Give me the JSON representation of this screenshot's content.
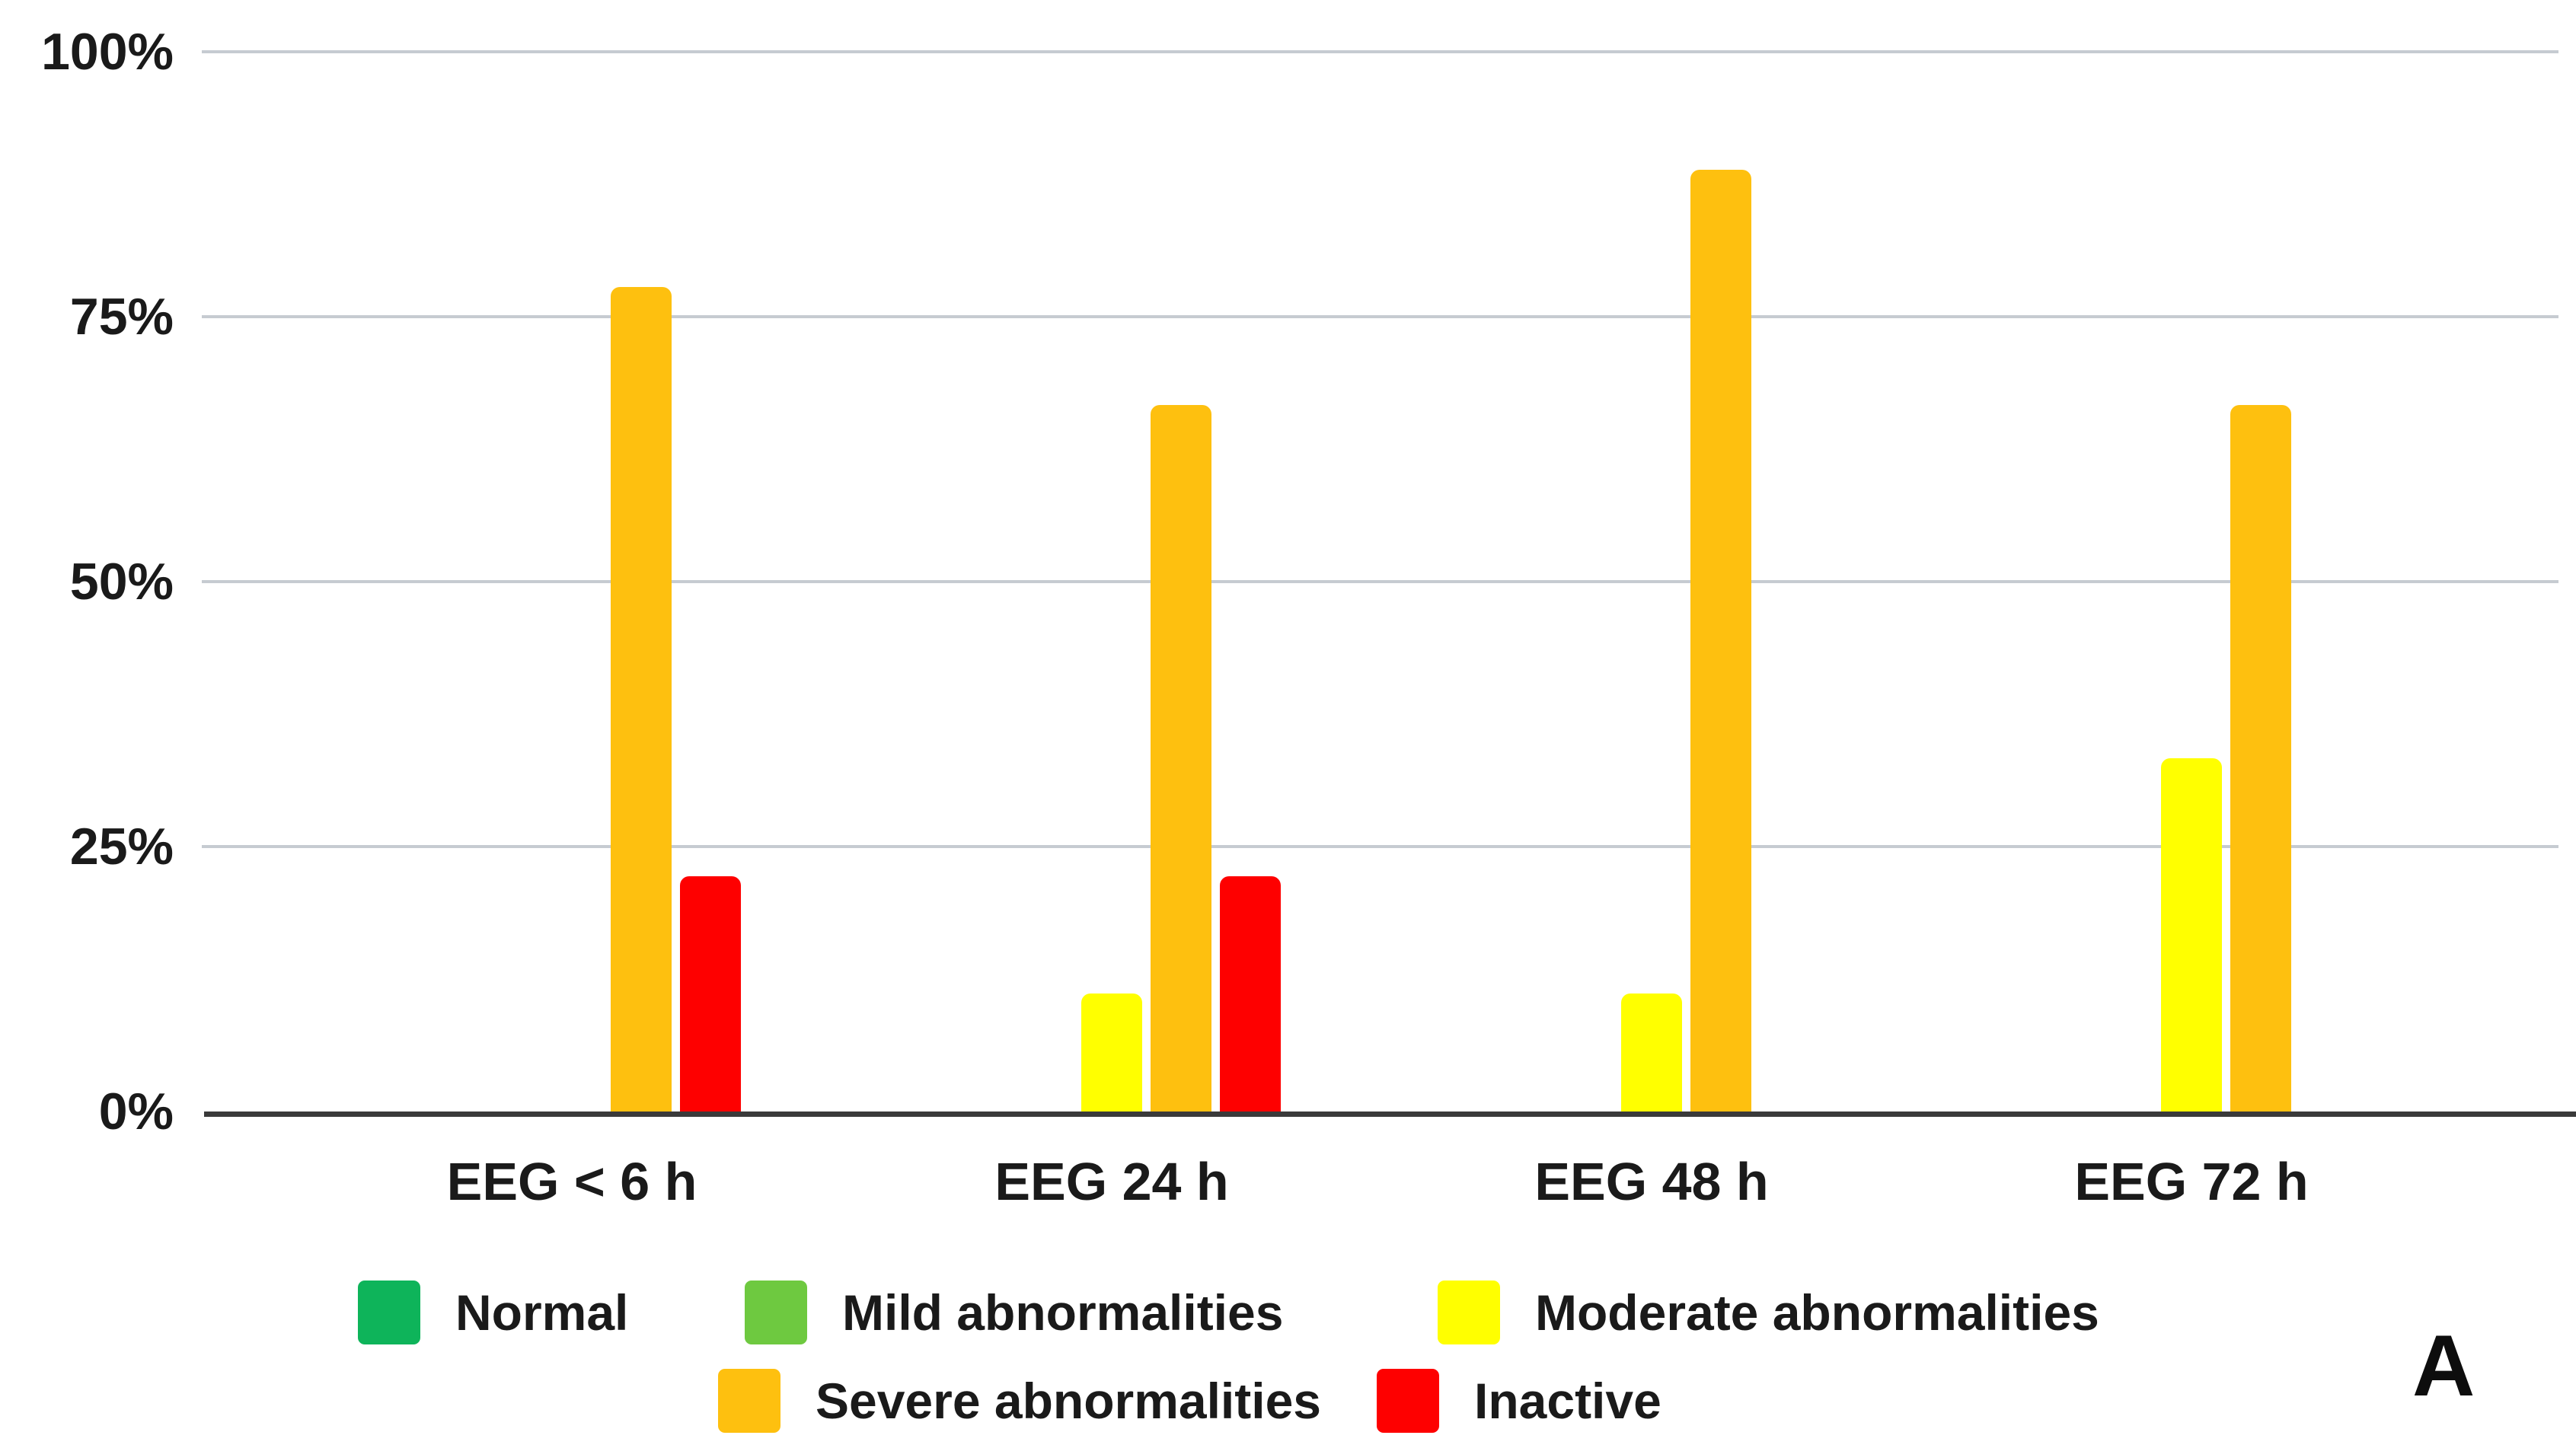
{
  "chart_data": {
    "type": "bar",
    "title": "",
    "xlabel": "",
    "ylabel": "",
    "categories": [
      "EEG < 6 h",
      "EEG 24 h",
      "EEG 48 h",
      "EEG 72 h"
    ],
    "series": [
      {
        "name": "Normal",
        "color": "#0eb45a",
        "values_pct": [
          0,
          0,
          0,
          0
        ]
      },
      {
        "name": "Mild abnormalities",
        "color": "#6ec940",
        "values_pct": [
          0,
          0,
          0,
          0
        ]
      },
      {
        "name": "Moderate abnormalities",
        "color": "#ffff00",
        "values_pct": [
          0,
          11.1,
          11.1,
          33.3
        ]
      },
      {
        "name": "Severe abnormalities",
        "color": "#fec00f",
        "values_pct": [
          77.8,
          66.7,
          88.9,
          66.7
        ]
      },
      {
        "name": "Inactive",
        "color": "#fe0000",
        "values_pct": [
          22.2,
          22.2,
          0,
          0
        ]
      }
    ],
    "yticks": [
      {
        "label": "0%",
        "value": 0
      },
      {
        "label": "25%",
        "value": 25
      },
      {
        "label": "50%",
        "value": 50
      },
      {
        "label": "75%",
        "value": 75
      },
      {
        "label": "100%",
        "value": 100
      }
    ],
    "ylim": [
      0,
      100
    ],
    "grid": true,
    "legend_position": "bottom",
    "panel_label": "A"
  },
  "style_colors": {
    "gridline": "#c6cbd1",
    "axis": "#3a3a3a",
    "text": "#1a1a1a",
    "background": "#ffffff"
  }
}
